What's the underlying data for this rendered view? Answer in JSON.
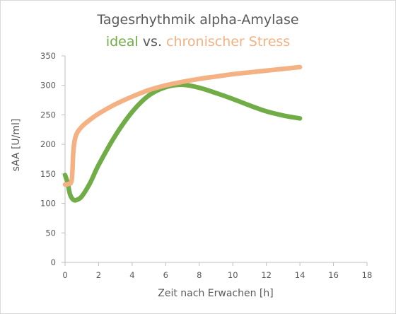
{
  "chart_data": {
    "type": "line",
    "title": {
      "line1": "Tagesrhythmik alpha-Amylase",
      "line2_part1": "ideal",
      "line2_part2": " vs. ",
      "line2_part3": "chronischer Stress"
    },
    "xlabel": "Zeit nach Erwachen [h]",
    "ylabel": "sAA [U/ml]",
    "xlim": [
      0,
      18
    ],
    "ylim": [
      0,
      350
    ],
    "xticks": [
      "0",
      "2",
      "4",
      "6",
      "8",
      "10",
      "12",
      "14",
      "16",
      "18"
    ],
    "yticks": [
      "0",
      "50",
      "100",
      "150",
      "200",
      "250",
      "300",
      "350"
    ],
    "grid": false,
    "legend": "none",
    "series": [
      {
        "name": "ideal",
        "color": "#70ad47",
        "points": [
          [
            0,
            148
          ],
          [
            0.15,
            135
          ],
          [
            0.3,
            115
          ],
          [
            0.5,
            106
          ],
          [
            0.7,
            106
          ],
          [
            1.0,
            112
          ],
          [
            1.5,
            135
          ],
          [
            2.0,
            165
          ],
          [
            3.0,
            215
          ],
          [
            4.0,
            255
          ],
          [
            5.0,
            283
          ],
          [
            6.0,
            297
          ],
          [
            7.0,
            301
          ],
          [
            8.0,
            296
          ],
          [
            9.0,
            287
          ],
          [
            10.0,
            277
          ],
          [
            11.0,
            266
          ],
          [
            12.0,
            256
          ],
          [
            13.0,
            249
          ],
          [
            14.0,
            244
          ]
        ]
      },
      {
        "name": "chronischer Stress",
        "color": "#f4b183",
        "points": [
          [
            0,
            132
          ],
          [
            0.2,
            133
          ],
          [
            0.4,
            140
          ],
          [
            0.5,
            190
          ],
          [
            0.65,
            215
          ],
          [
            1.0,
            230
          ],
          [
            1.5,
            242
          ],
          [
            2.0,
            252
          ],
          [
            3.0,
            268
          ],
          [
            4.0,
            281
          ],
          [
            5.0,
            292
          ],
          [
            6.0,
            300
          ],
          [
            7.0,
            306
          ],
          [
            8.0,
            311
          ],
          [
            9.0,
            315
          ],
          [
            10.0,
            319
          ],
          [
            11.0,
            322
          ],
          [
            12.0,
            325
          ],
          [
            13.0,
            328
          ],
          [
            14.0,
            331
          ]
        ]
      }
    ],
    "colors": {
      "title_text": "#595959",
      "axis_line": "#bfbfbf",
      "ideal": "#70ad47",
      "stress": "#f4b183"
    }
  }
}
